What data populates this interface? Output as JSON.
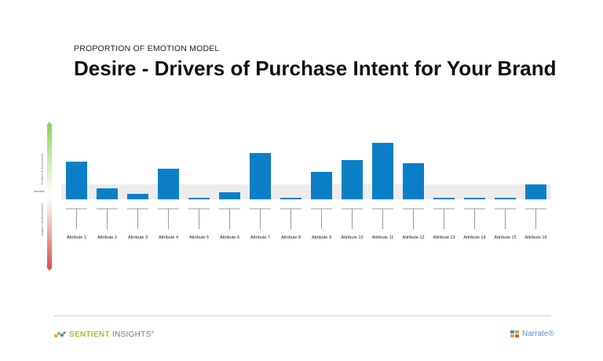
{
  "header": {
    "eyebrow": "PROPORTION OF EMOTION MODEL",
    "title": "Desire - Drivers of Purchase Intent for Your Brand"
  },
  "scale": {
    "top_label": "Positive Life Brand Desire",
    "neutral_label": "Neutral",
    "bottom_label": "Negative Life Brand Desire"
  },
  "colors": {
    "bar": "#0a7fc8",
    "neutral_band": "#ececec",
    "positive": "#8fd35a",
    "negative": "#d9534f"
  },
  "chart_data": {
    "type": "bar",
    "title": "Desire - Drivers of Purchase Intent for Your Brand",
    "categories": [
      "Attribute 1",
      "Attribute 2",
      "Attribute 3",
      "Attribute 4",
      "Attribute 5",
      "Attribute 6",
      "Attribute 7",
      "Attribute 8",
      "Attribute 9",
      "Attribute 10",
      "Attribute 11",
      "Attribute 12",
      "Attribute 13",
      "Attribute 14",
      "Attribute 15",
      "Attribute 16"
    ],
    "values": [
      48,
      14,
      7,
      39,
      2,
      9,
      59,
      2,
      35,
      50,
      72,
      46,
      2,
      2,
      2,
      19
    ],
    "ylim": [
      0,
      100
    ],
    "xlabel": "",
    "ylabel": ""
  },
  "footer": {
    "left_brand_bold": "SENTIENT",
    "left_brand_thin": " INSIGHTS",
    "left_brand_mark": "°",
    "right_brand": "Narrate",
    "right_brand_mark": "®"
  }
}
